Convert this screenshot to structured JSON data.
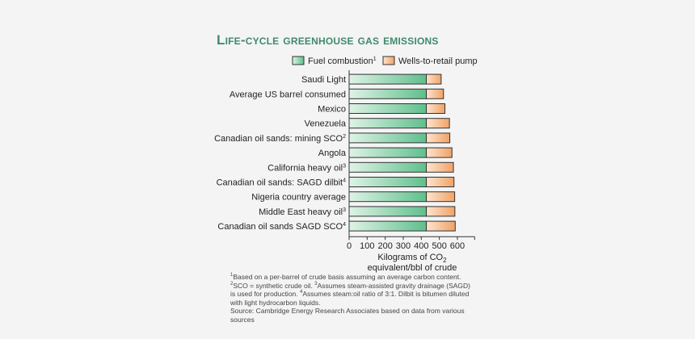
{
  "title": "Life-cycle greenhouse gas emissions",
  "colors": {
    "fuel_light": "#dff3e6",
    "fuel_dark": "#5fbf8c",
    "pump_light": "#fde5cf",
    "pump_dark": "#f1a266",
    "outline": "#333333",
    "title": "#3f8a6c"
  },
  "footnotes": {
    "note1": "Based on a per-barrel of crude basis assuming an average carbon content.",
    "note2": "SCO = synthetic crude oil.",
    "note3": "Assumes steam-assisted gravity drainage (SAGD) is used for production.",
    "note4": "Assumes steam:oil ratio of 3:1. Dilbit is bitumen diluted with light hydrocarbon liquids.",
    "source": "Source: Cambridge Energy Research Associates based on data from various sources"
  },
  "chart_data": {
    "type": "bar",
    "orientation": "horizontal",
    "stacked": true,
    "categories": [
      {
        "label": "Saudi Light",
        "sup": ""
      },
      {
        "label": "Average US barrel consumed",
        "sup": ""
      },
      {
        "label": "Mexico",
        "sup": ""
      },
      {
        "label": "Venezuela",
        "sup": ""
      },
      {
        "label": "Canadian oil sands: mining SCO",
        "sup": "2"
      },
      {
        "label": "Angola",
        "sup": ""
      },
      {
        "label": "California heavy oil",
        "sup": "3"
      },
      {
        "label": "Canadian oil sands: SAGD dilbit",
        "sup": "4"
      },
      {
        "label": "Nigeria country average",
        "sup": ""
      },
      {
        "label": "Middle East heavy oil",
        "sup": "3"
      },
      {
        "label": "Canadian oil sands SAGD SCO",
        "sup": "4"
      }
    ],
    "series": [
      {
        "name": "Fuel combustion",
        "sup": "1",
        "values": [
          428,
          428,
          428,
          428,
          428,
          428,
          428,
          428,
          428,
          428,
          428
        ]
      },
      {
        "name": "Wells-to-retail pump",
        "sup": "",
        "values": [
          82,
          95,
          103,
          128,
          130,
          142,
          150,
          153,
          157,
          158,
          160
        ]
      }
    ],
    "xlabel_line1": "Kilograms of CO",
    "xlabel_sub": "2",
    "xlabel_line2": "equivalent/bbl of crude",
    "xticks": [
      "0",
      "100",
      "200",
      "300",
      "400",
      "500",
      "600"
    ],
    "xlim": [
      0,
      700
    ],
    "legend_position": "top"
  }
}
